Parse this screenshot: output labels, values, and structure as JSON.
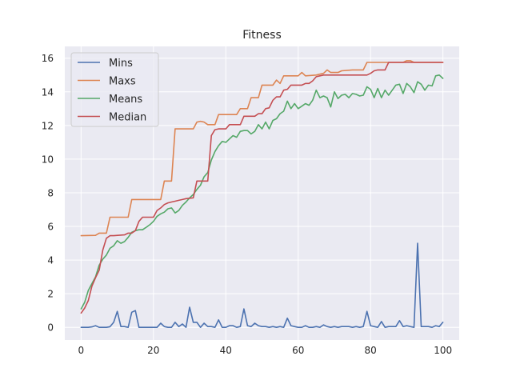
{
  "chart_data": {
    "type": "line",
    "title": "Fitness",
    "xlabel": "",
    "ylabel": "",
    "xlim": [
      -4.5,
      104.5
    ],
    "ylim": [
      -0.75,
      16.7
    ],
    "xticks": [
      0,
      20,
      40,
      60,
      80,
      100
    ],
    "yticks": [
      0,
      2,
      4,
      6,
      8,
      10,
      12,
      14,
      16
    ],
    "grid": true,
    "legend_position": "top-left",
    "background": "#eaeaf2",
    "series": [
      {
        "name": "Mins",
        "color": "#4c72b0",
        "points": [
          [
            0,
            0.0
          ],
          [
            1,
            0.0
          ],
          [
            2,
            0.0
          ],
          [
            3,
            0.03
          ],
          [
            4,
            0.1
          ],
          [
            5,
            0.0
          ],
          [
            6,
            0.0
          ],
          [
            7,
            0.0
          ],
          [
            8,
            0.04
          ],
          [
            9,
            0.3
          ],
          [
            10,
            0.95
          ],
          [
            11,
            0.05
          ],
          [
            12,
            0.05
          ],
          [
            13,
            0.0
          ],
          [
            14,
            0.9
          ],
          [
            15,
            1.0
          ],
          [
            16,
            0.0
          ],
          [
            17,
            0.0
          ],
          [
            18,
            0.0
          ],
          [
            19,
            0.0
          ],
          [
            20,
            0.0
          ],
          [
            21,
            0.0
          ],
          [
            22,
            0.25
          ],
          [
            23,
            0.05
          ],
          [
            24,
            0.0
          ],
          [
            25,
            0.0
          ],
          [
            26,
            0.3
          ],
          [
            27,
            0.05
          ],
          [
            28,
            0.2
          ],
          [
            29,
            0.0
          ],
          [
            30,
            1.2
          ],
          [
            31,
            0.3
          ],
          [
            32,
            0.3
          ],
          [
            33,
            0.0
          ],
          [
            34,
            0.25
          ],
          [
            35,
            0.05
          ],
          [
            36,
            0.05
          ],
          [
            37,
            0.0
          ],
          [
            38,
            0.45
          ],
          [
            39,
            0.0
          ],
          [
            40,
            0.0
          ],
          [
            41,
            0.1
          ],
          [
            42,
            0.1
          ],
          [
            43,
            0.0
          ],
          [
            44,
            0.05
          ],
          [
            45,
            1.1
          ],
          [
            46,
            0.1
          ],
          [
            47,
            0.05
          ],
          [
            48,
            0.25
          ],
          [
            49,
            0.1
          ],
          [
            50,
            0.05
          ],
          [
            51,
            0.05
          ],
          [
            52,
            0.0
          ],
          [
            53,
            0.05
          ],
          [
            54,
            0.0
          ],
          [
            55,
            0.05
          ],
          [
            56,
            0.0
          ],
          [
            57,
            0.55
          ],
          [
            58,
            0.1
          ],
          [
            59,
            0.05
          ],
          [
            60,
            0.0
          ],
          [
            61,
            0.0
          ],
          [
            62,
            0.1
          ],
          [
            63,
            0.0
          ],
          [
            64,
            0.0
          ],
          [
            65,
            0.05
          ],
          [
            66,
            0.0
          ],
          [
            67,
            0.15
          ],
          [
            68,
            0.05
          ],
          [
            69,
            0.0
          ],
          [
            70,
            0.05
          ],
          [
            71,
            0.0
          ],
          [
            72,
            0.05
          ],
          [
            73,
            0.05
          ],
          [
            74,
            0.05
          ],
          [
            75,
            0.0
          ],
          [
            76,
            0.05
          ],
          [
            77,
            0.0
          ],
          [
            78,
            0.05
          ],
          [
            79,
            0.95
          ],
          [
            80,
            0.1
          ],
          [
            81,
            0.05
          ],
          [
            82,
            0.0
          ],
          [
            83,
            0.35
          ],
          [
            84,
            0.0
          ],
          [
            85,
            0.05
          ],
          [
            86,
            0.05
          ],
          [
            87,
            0.05
          ],
          [
            88,
            0.4
          ],
          [
            89,
            0.05
          ],
          [
            90,
            0.1
          ],
          [
            91,
            0.05
          ],
          [
            92,
            0.0
          ],
          [
            93,
            5.0
          ],
          [
            94,
            0.05
          ],
          [
            95,
            0.05
          ],
          [
            96,
            0.05
          ],
          [
            97,
            0.0
          ],
          [
            98,
            0.1
          ],
          [
            99,
            0.05
          ],
          [
            100,
            0.3
          ]
        ]
      },
      {
        "name": "Maxs",
        "color": "#dd8452",
        "points": [
          [
            0,
            5.45
          ],
          [
            4,
            5.47
          ],
          [
            5,
            5.6
          ],
          [
            7,
            5.6
          ],
          [
            8,
            6.55
          ],
          [
            13,
            6.55
          ],
          [
            14,
            7.6
          ],
          [
            22,
            7.6
          ],
          [
            23,
            8.7
          ],
          [
            25,
            8.7
          ],
          [
            26,
            11.8
          ],
          [
            31,
            11.8
          ],
          [
            32,
            12.2
          ],
          [
            33,
            12.25
          ],
          [
            34,
            12.2
          ],
          [
            35,
            12.05
          ],
          [
            37,
            12.05
          ],
          [
            38,
            12.65
          ],
          [
            43,
            12.65
          ],
          [
            44,
            13.0
          ],
          [
            46,
            13.0
          ],
          [
            47,
            13.65
          ],
          [
            49,
            13.65
          ],
          [
            50,
            14.4
          ],
          [
            53,
            14.4
          ],
          [
            54,
            14.7
          ],
          [
            55,
            14.5
          ],
          [
            56,
            14.95
          ],
          [
            60,
            14.95
          ],
          [
            61,
            15.15
          ],
          [
            62,
            14.95
          ],
          [
            65,
            15.0
          ],
          [
            66,
            15.05
          ],
          [
            67,
            15.1
          ],
          [
            68,
            15.3
          ],
          [
            69,
            15.15
          ],
          [
            71,
            15.15
          ],
          [
            72,
            15.25
          ],
          [
            75,
            15.3
          ],
          [
            78,
            15.3
          ],
          [
            79,
            15.75
          ],
          [
            89,
            15.75
          ],
          [
            90,
            15.85
          ],
          [
            91,
            15.85
          ],
          [
            92,
            15.75
          ],
          [
            100,
            15.75
          ]
        ]
      },
      {
        "name": "Means",
        "color": "#55a868",
        "points": [
          [
            0,
            1.1
          ],
          [
            1,
            1.5
          ],
          [
            2,
            2.2
          ],
          [
            3,
            2.6
          ],
          [
            4,
            3.0
          ],
          [
            5,
            3.7
          ],
          [
            6,
            4.05
          ],
          [
            7,
            4.3
          ],
          [
            8,
            4.7
          ],
          [
            9,
            4.85
          ],
          [
            10,
            5.15
          ],
          [
            11,
            5.0
          ],
          [
            12,
            5.1
          ],
          [
            13,
            5.35
          ],
          [
            14,
            5.65
          ],
          [
            15,
            5.75
          ],
          [
            16,
            5.8
          ],
          [
            17,
            5.8
          ],
          [
            18,
            5.95
          ],
          [
            19,
            6.1
          ],
          [
            20,
            6.3
          ],
          [
            21,
            6.6
          ],
          [
            22,
            6.75
          ],
          [
            23,
            6.85
          ],
          [
            24,
            7.05
          ],
          [
            25,
            7.1
          ],
          [
            26,
            6.8
          ],
          [
            27,
            6.95
          ],
          [
            28,
            7.25
          ],
          [
            29,
            7.45
          ],
          [
            30,
            7.7
          ],
          [
            31,
            7.9
          ],
          [
            32,
            8.2
          ],
          [
            33,
            8.45
          ],
          [
            34,
            8.95
          ],
          [
            35,
            9.2
          ],
          [
            36,
            9.95
          ],
          [
            37,
            10.45
          ],
          [
            38,
            10.8
          ],
          [
            39,
            11.05
          ],
          [
            40,
            11.0
          ],
          [
            41,
            11.2
          ],
          [
            42,
            11.4
          ],
          [
            43,
            11.3
          ],
          [
            44,
            11.65
          ],
          [
            45,
            11.7
          ],
          [
            46,
            11.7
          ],
          [
            47,
            11.5
          ],
          [
            48,
            11.65
          ],
          [
            49,
            12.05
          ],
          [
            50,
            11.8
          ],
          [
            51,
            12.2
          ],
          [
            52,
            11.8
          ],
          [
            53,
            12.3
          ],
          [
            54,
            12.4
          ],
          [
            55,
            12.7
          ],
          [
            56,
            12.85
          ],
          [
            57,
            13.45
          ],
          [
            58,
            13.0
          ],
          [
            59,
            13.3
          ],
          [
            60,
            13.0
          ],
          [
            61,
            13.15
          ],
          [
            62,
            13.3
          ],
          [
            63,
            13.2
          ],
          [
            64,
            13.5
          ],
          [
            65,
            14.1
          ],
          [
            66,
            13.65
          ],
          [
            67,
            13.75
          ],
          [
            68,
            13.65
          ],
          [
            69,
            13.1
          ],
          [
            70,
            14.0
          ],
          [
            71,
            13.6
          ],
          [
            72,
            13.8
          ],
          [
            73,
            13.85
          ],
          [
            74,
            13.65
          ],
          [
            75,
            13.9
          ],
          [
            76,
            13.85
          ],
          [
            77,
            13.75
          ],
          [
            78,
            13.8
          ],
          [
            79,
            14.3
          ],
          [
            80,
            14.15
          ],
          [
            81,
            13.65
          ],
          [
            82,
            14.2
          ],
          [
            83,
            13.65
          ],
          [
            84,
            14.1
          ],
          [
            85,
            13.8
          ],
          [
            86,
            14.1
          ],
          [
            87,
            14.4
          ],
          [
            88,
            14.45
          ],
          [
            89,
            13.9
          ],
          [
            90,
            14.5
          ],
          [
            91,
            14.3
          ],
          [
            92,
            13.95
          ],
          [
            93,
            14.6
          ],
          [
            94,
            14.45
          ],
          [
            95,
            14.1
          ],
          [
            96,
            14.4
          ],
          [
            97,
            14.35
          ],
          [
            98,
            14.95
          ],
          [
            99,
            15.0
          ],
          [
            100,
            14.8
          ]
        ]
      },
      {
        "name": "Median",
        "color": "#c44e52",
        "points": [
          [
            0,
            0.85
          ],
          [
            1,
            1.15
          ],
          [
            2,
            1.6
          ],
          [
            3,
            2.45
          ],
          [
            4,
            2.95
          ],
          [
            5,
            3.4
          ],
          [
            6,
            4.6
          ],
          [
            7,
            5.3
          ],
          [
            8,
            5.45
          ],
          [
            9,
            5.45
          ],
          [
            12,
            5.5
          ],
          [
            13,
            5.6
          ],
          [
            14,
            5.6
          ],
          [
            15,
            5.75
          ],
          [
            16,
            6.3
          ],
          [
            17,
            6.55
          ],
          [
            20,
            6.55
          ],
          [
            21,
            6.95
          ],
          [
            22,
            7.1
          ],
          [
            23,
            7.3
          ],
          [
            24,
            7.4
          ],
          [
            25,
            7.45
          ],
          [
            26,
            7.5
          ],
          [
            27,
            7.55
          ],
          [
            28,
            7.6
          ],
          [
            29,
            7.65
          ],
          [
            31,
            7.7
          ],
          [
            32,
            8.7
          ],
          [
            35,
            8.7
          ],
          [
            36,
            11.4
          ],
          [
            37,
            11.75
          ],
          [
            38,
            11.8
          ],
          [
            40,
            11.8
          ],
          [
            41,
            12.05
          ],
          [
            44,
            12.05
          ],
          [
            45,
            12.55
          ],
          [
            48,
            12.55
          ],
          [
            49,
            12.7
          ],
          [
            50,
            12.7
          ],
          [
            51,
            13.0
          ],
          [
            52,
            13.05
          ],
          [
            53,
            13.5
          ],
          [
            54,
            13.7
          ],
          [
            55,
            13.7
          ],
          [
            56,
            14.1
          ],
          [
            57,
            14.15
          ],
          [
            58,
            14.4
          ],
          [
            61,
            14.4
          ],
          [
            62,
            14.5
          ],
          [
            63,
            14.5
          ],
          [
            64,
            14.65
          ],
          [
            65,
            14.9
          ],
          [
            66,
            14.95
          ],
          [
            67,
            15.0
          ],
          [
            79,
            15.0
          ],
          [
            80,
            15.1
          ],
          [
            81,
            15.25
          ],
          [
            82,
            15.3
          ],
          [
            84,
            15.3
          ],
          [
            85,
            15.75
          ],
          [
            100,
            15.75
          ]
        ]
      }
    ]
  }
}
